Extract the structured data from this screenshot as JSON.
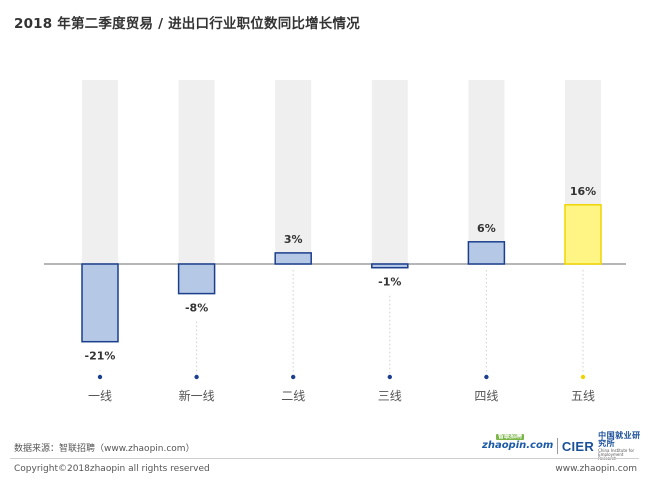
{
  "chart_data": {
    "type": "bar",
    "title": "2018 年第二季度贸易 / 进出口行业职位数同比增长情况",
    "categories": [
      "一线",
      "新一线",
      "二线",
      "三线",
      "四线",
      "五线"
    ],
    "values": [
      -21,
      -8,
      3,
      -1,
      6,
      16
    ],
    "value_labels": [
      "-21%",
      "-8%",
      "3%",
      "-1%",
      "6%",
      "16%"
    ],
    "unit": "%",
    "highlight_index": 5,
    "xlabel": "",
    "ylabel": "",
    "grid": false,
    "legend": "none"
  },
  "colors": {
    "bar_fill": "#b5c8e6",
    "bar_stroke": "#1b3f8c",
    "highlight_fill": "#fff585",
    "highlight_stroke": "#f0d400",
    "background_column": "#efefef",
    "axis": "#8a8a8a",
    "dot": "#1b3f8c",
    "highlight_dot": "#f0d400"
  },
  "footer": {
    "source": "数据来源：智联招聘（www.zhaopin.com）",
    "copyright": "Copyright©2018zhaopin all rights reserved",
    "website": "www.zhaopin.com",
    "logo_zhaopin": "zhaopin.com",
    "logo_zhaopin_badge": "智联招聘",
    "logo_cier": "CIER",
    "logo_cier_cn": "中国就业研究所",
    "logo_cier_en": "China Institute for Employment Research"
  }
}
